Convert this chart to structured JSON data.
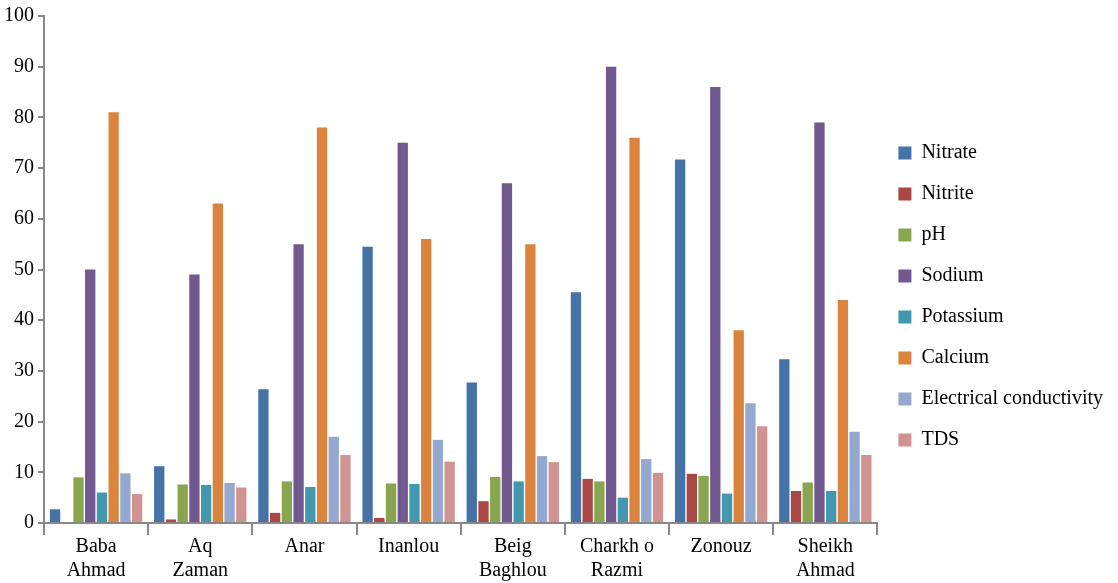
{
  "chart_data": {
    "type": "bar",
    "categories": [
      "Baba Ahmad",
      "Aq Zaman",
      "Anar",
      "Inanlou",
      "Beig Baghlou",
      "Charkh o Razmi",
      "Zonouz",
      "Sheikh Ahmad"
    ],
    "series": [
      {
        "name": "Nitrate",
        "color": "#4572a7",
        "values": [
          2.7,
          11.2,
          26.4,
          54.5,
          27.7,
          45.5,
          71.7,
          32.3
        ]
      },
      {
        "name": "Nitrite",
        "color": "#aa4643",
        "values": [
          null,
          0.7,
          2,
          1,
          4.3,
          8.7,
          9.7,
          6.3
        ]
      },
      {
        "name": "pH",
        "color": "#89a54e",
        "values": [
          9,
          7.6,
          8.2,
          7.8,
          9.1,
          8.2,
          9.3,
          8
        ]
      },
      {
        "name": "Sodium",
        "color": "#71588f",
        "values": [
          50,
          49,
          55,
          75,
          67,
          90,
          86,
          79
        ]
      },
      {
        "name": "Potassium",
        "color": "#4198af",
        "values": [
          6,
          7.5,
          7.1,
          7.7,
          8.2,
          5,
          5.8,
          6.3
        ]
      },
      {
        "name": "Calcium",
        "color": "#db843d",
        "values": [
          81,
          63,
          78,
          56,
          55,
          76,
          38,
          44
        ]
      },
      {
        "name": "Electrical conductivity",
        "color": "#93a9cf",
        "values": [
          9.8,
          7.9,
          17,
          16.4,
          13.2,
          12.6,
          23.6,
          18
        ]
      },
      {
        "name": "TDS",
        "color": "#d19392",
        "values": [
          5.7,
          7,
          13.4,
          12.1,
          12,
          9.9,
          19.1,
          13.4
        ]
      }
    ],
    "ylim": [
      0,
      100
    ],
    "yticks": [
      0,
      10,
      20,
      30,
      40,
      50,
      60,
      70,
      80,
      90,
      100
    ],
    "grid": false,
    "legend": "right"
  }
}
